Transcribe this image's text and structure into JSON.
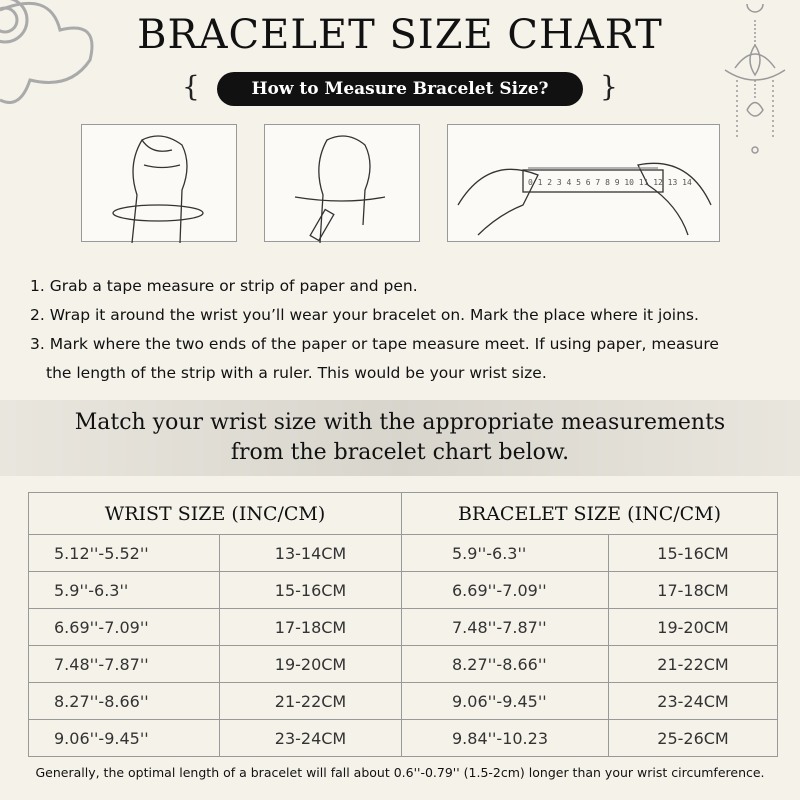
{
  "title": "BRACELET SIZE CHART",
  "subtitle": "How to Measure Bracelet Size?",
  "illustrations": [
    "hand-wrapping-tape",
    "hand-marking-tape",
    "hands-measuring-with-ruler"
  ],
  "steps": [
    "1. Grab a tape measure or strip of paper and pen.",
    "2. Wrap it around the wrist you’ll wear your bracelet on. Mark the place where it joins.",
    "3. Mark where the two ends of the paper or tape measure meet. If using paper, measure",
    "the length of the strip with a ruler. This would be your wrist size."
  ],
  "banner": {
    "line1": "Match your wrist size with the appropriate measurements",
    "line2": "from the bracelet chart below."
  },
  "table": {
    "headers": [
      "WRIST SIZE (INC/CM)",
      "BRACELET SIZE   (INC/CM)"
    ],
    "rows": [
      [
        "5.12''-5.52''",
        "13-14CM",
        "5.9''-6.3''",
        "15-16CM"
      ],
      [
        "5.9''-6.3''",
        "15-16CM",
        "6.69''-7.09''",
        "17-18CM"
      ],
      [
        "6.69''-7.09''",
        "17-18CM",
        "7.48''-7.87''",
        "19-20CM"
      ],
      [
        "7.48''-7.87''",
        "19-20CM",
        "8.27''-8.66''",
        "21-22CM"
      ],
      [
        "8.27''-8.66''",
        "21-22CM",
        "9.06''-9.45''",
        "23-24CM"
      ],
      [
        "9.06''-9.45''",
        "23-24CM",
        "9.84''-10.23",
        "25-26CM"
      ]
    ]
  },
  "note": "Generally, the optimal length of a bracelet will fall about 0.6''-0.79'' (1.5-2cm) longer than your wrist circumference."
}
